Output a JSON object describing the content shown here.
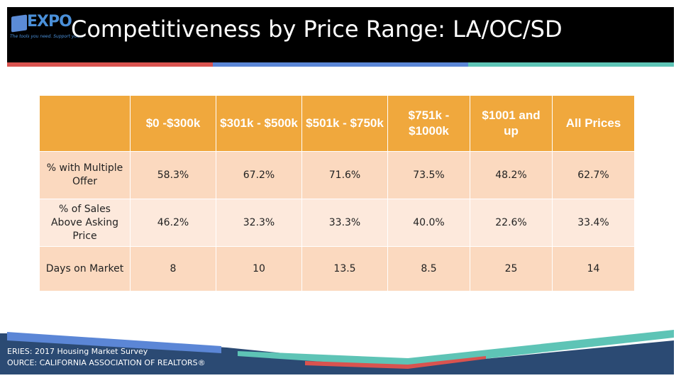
{
  "logo": {
    "word": "EXPO",
    "tagline": "The tools you need. Support you..."
  },
  "title": "Competitiveness by Price Range: LA/OC/SD",
  "table": {
    "headers": [
      "",
      "$0 -$300k",
      "$301k - $500k",
      "$501k - $750k",
      "$751k - $1000k",
      "$1001 and up",
      "All Prices"
    ],
    "rows": [
      {
        "label": "% with Multiple Offer",
        "values": [
          "58.3%",
          "67.2%",
          "71.6%",
          "73.5%",
          "48.2%",
          "62.7%"
        ]
      },
      {
        "label": "% of Sales Above Asking Price",
        "values": [
          "46.2%",
          "32.3%",
          "33.3%",
          "40.0%",
          "22.6%",
          "33.4%"
        ]
      },
      {
        "label": "Days on Market",
        "values": [
          "8",
          "10",
          "13.5",
          "8.5",
          "25",
          "14"
        ]
      }
    ]
  },
  "footer": {
    "series": "ERIES: 2017 Housing Market Survey",
    "source": "OURCE:  CALIFORNIA ASSOCIATION OF REALTORS®"
  },
  "colors": {
    "header_bg": "#000000",
    "header_orange": "#f0a83d",
    "row_dark": "#fbd9bf",
    "row_light": "#fde9dc",
    "accent_red": "#d9534f",
    "accent_blue": "#5b86d6",
    "accent_teal": "#5ec4b6",
    "footer_navy": "#2b4a73"
  }
}
